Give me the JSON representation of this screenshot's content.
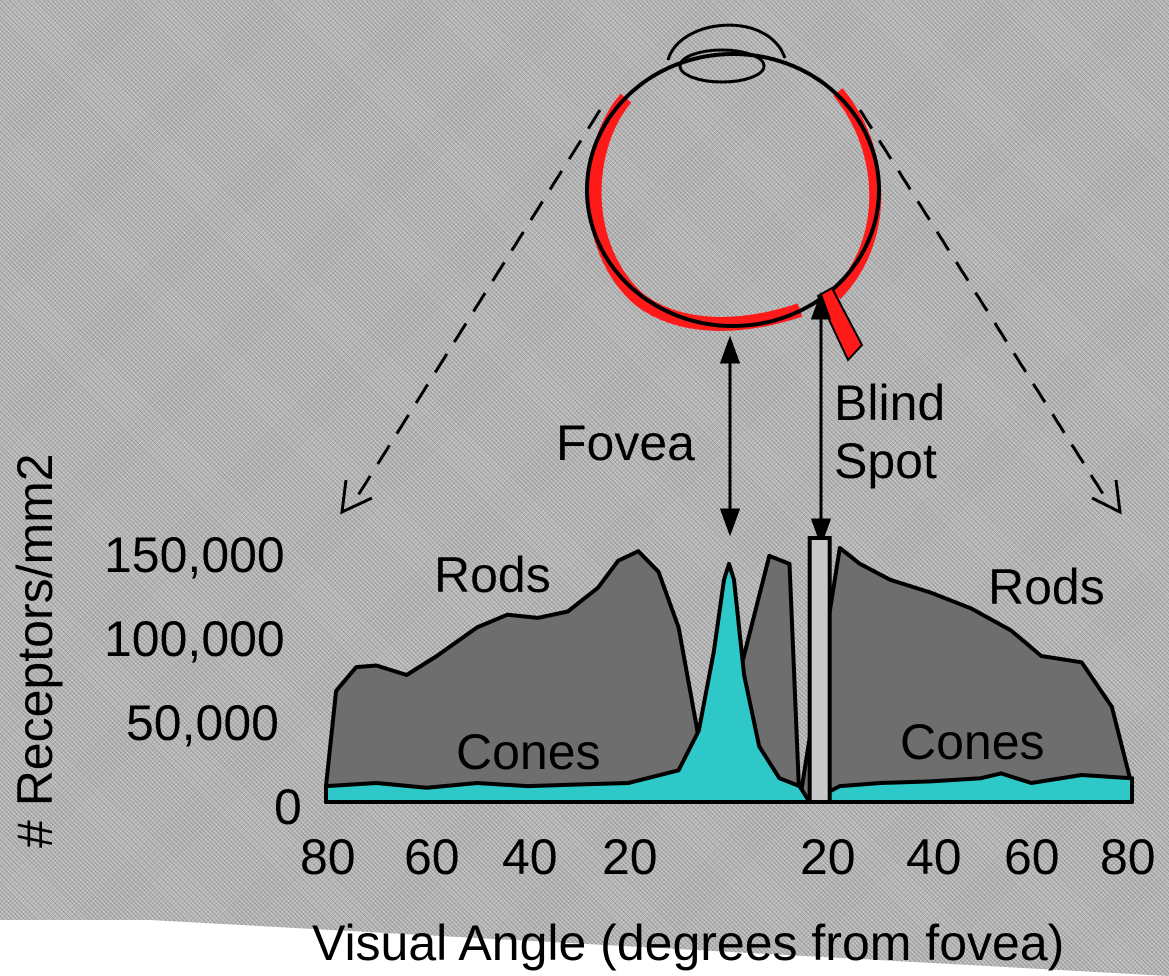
{
  "labels": {
    "fovea": "Fovea",
    "blind_spot_line1": "Blind",
    "blind_spot_line2": "Spot",
    "rods_left": "Rods",
    "rods_right": "Rods",
    "cones_left": "Cones",
    "cones_right": "Cones"
  },
  "axes": {
    "ylabel": "# Receptors/mm2",
    "xlabel": "Visual Angle (degrees from fovea)",
    "y_ticks": [
      "150,000",
      "100,000",
      "50,000",
      "0"
    ],
    "x_ticks": [
      "80",
      "60",
      "40",
      "20",
      "20",
      "40",
      "60",
      "80"
    ]
  },
  "colors": {
    "rods_fill": "#6e6e6e",
    "cones_fill": "#2ec8c8",
    "retina": "#ff1a1a",
    "outline": "#000000",
    "background_texture": "#b8b8b8"
  },
  "chart_data": {
    "type": "area",
    "x_label": "Visual Angle (degrees from fovea)",
    "y_label": "# Receptors/mm2",
    "ylim": [
      0,
      160000
    ],
    "xlim": [
      -80,
      80
    ],
    "blind_spot_x": 18,
    "series": [
      {
        "name": "Rods",
        "x": [
          -80,
          -78,
          -74,
          -70,
          -64,
          -58,
          -50,
          -44,
          -38,
          -32,
          -26,
          -22,
          -18,
          -14,
          -10,
          -6,
          -4,
          2,
          8,
          12,
          14,
          22,
          26,
          32,
          40,
          48,
          56,
          62,
          70,
          76,
          80
        ],
        "y": [
          10000,
          70000,
          85000,
          86000,
          80000,
          92000,
          110000,
          118000,
          116000,
          120000,
          135000,
          152000,
          158000,
          145000,
          110000,
          40000,
          5000,
          80000,
          155000,
          150000,
          0,
          160000,
          150000,
          140000,
          132000,
          122000,
          108000,
          92000,
          88000,
          60000,
          10000
        ]
      },
      {
        "name": "Cones",
        "x": [
          -80,
          -70,
          -60,
          -50,
          -40,
          -30,
          -20,
          -10,
          -6,
          -3,
          -1,
          0,
          1,
          3,
          6,
          10,
          14,
          16,
          22,
          30,
          40,
          50,
          54,
          60,
          70,
          80
        ],
        "y": [
          10000,
          12000,
          9000,
          12000,
          10000,
          11000,
          12000,
          20000,
          45000,
          95000,
          140000,
          150000,
          140000,
          80000,
          35000,
          15000,
          10000,
          0,
          10000,
          12000,
          13000,
          15000,
          18000,
          12000,
          17000,
          15000
        ]
      }
    ]
  }
}
